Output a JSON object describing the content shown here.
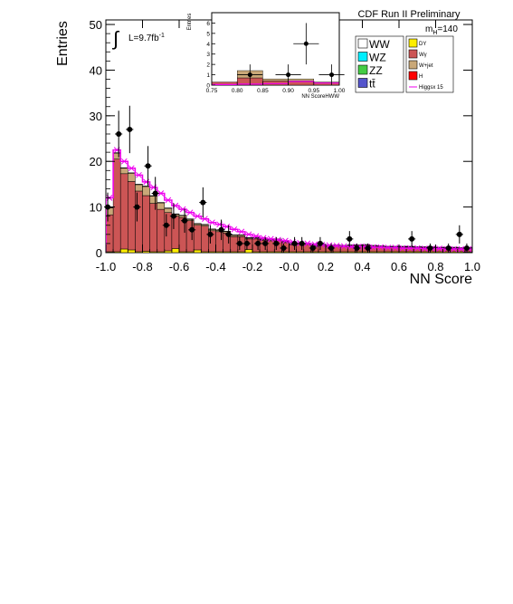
{
  "chart_data": {
    "type": "bar",
    "stacked": true,
    "xlabel": "NN Score",
    "ylabel": "Entries",
    "xlim": [
      -1.0,
      1.0
    ],
    "ylim": [
      0,
      51
    ],
    "x_ticks": [
      "-1.0",
      "-0.8",
      "-0.6",
      "-0.4",
      "-0.2",
      "-0.0",
      "0.2",
      "0.4",
      "0.6",
      "0.8",
      "1.0"
    ],
    "y_ticks": [
      "0",
      "10",
      "20",
      "30",
      "40",
      "50"
    ],
    "lumi_text": "L=9.7fb",
    "lumi_sup": "-1",
    "header_text": "CDF Run II Preliminary",
    "mass_label": "m",
    "mass_sub": "H",
    "mass_value": "=140",
    "bin_low_edges": [
      -1.0,
      -0.96,
      -0.92,
      -0.88,
      -0.84,
      -0.8,
      -0.76,
      -0.72,
      -0.68,
      -0.64,
      -0.6,
      -0.56,
      -0.52,
      -0.48,
      -0.44,
      -0.4,
      -0.36,
      -0.32,
      -0.28,
      -0.24,
      -0.2,
      -0.16,
      -0.12,
      -0.08,
      -0.04,
      0.0,
      0.04,
      0.08,
      0.12,
      0.16,
      0.2,
      0.24,
      0.28,
      0.32,
      0.36,
      0.4,
      0.44,
      0.48,
      0.52,
      0.56,
      0.6,
      0.64,
      0.68,
      0.72,
      0.76,
      0.8,
      0.84,
      0.88,
      0.92,
      0.96
    ],
    "bin_width": 0.04,
    "series": [
      {
        "name": "DY",
        "color": "#ffee00",
        "values": [
          0.2,
          0.2,
          0.8,
          0.6,
          0.2,
          0.3,
          0.2,
          0.2,
          0.4,
          0.9,
          0.2,
          0.2,
          0.6,
          0.2,
          0.2,
          0.2,
          0.2,
          0.2,
          0.2,
          0.7,
          0.2,
          0.2,
          0.2,
          0.2,
          0.2,
          0.2,
          0.2,
          0.2,
          0.2,
          0.2,
          0.2,
          0.2,
          0.2,
          0.2,
          0.2,
          0.2,
          0.2,
          0.2,
          0.2,
          0.2,
          0.2,
          0.2,
          0.2,
          0.2,
          0.2,
          0.2,
          0.2,
          0.2,
          0.2,
          0.2
        ]
      },
      {
        "name": "Wγ",
        "color": "#cc5555",
        "values": [
          8.1,
          20.3,
          16.5,
          15.0,
          13.3,
          12.2,
          10.6,
          9.3,
          8.4,
          7.1,
          7.5,
          6.8,
          5.4,
          5.6,
          4.6,
          4.4,
          4.1,
          3.3,
          3.3,
          2.3,
          2.8,
          2.5,
          2.4,
          2.5,
          2.0,
          1.5,
          1.6,
          1.6,
          1.1,
          1.4,
          1.2,
          1.2,
          1.1,
          1.2,
          1.2,
          1.3,
          1.1,
          1.1,
          1.0,
          1.0,
          1.0,
          1.0,
          0.9,
          0.9,
          0.9,
          0.8,
          0.8,
          0.8,
          0.7,
          0.7
        ]
      },
      {
        "name": "W+jet",
        "color": "#c9a878",
        "values": [
          1.5,
          1.3,
          1.2,
          1.8,
          1.4,
          2.0,
          1.6,
          1.4,
          0.9,
          0.4,
          0.4,
          0.3,
          0.3,
          0.3,
          0.3,
          0.3,
          0.3,
          0.3,
          0.3,
          0.2,
          0.2,
          0.2,
          0.2,
          0.2,
          0.2,
          0.2,
          0.2,
          0.2,
          0.2,
          0.2,
          0.2,
          0.2,
          0.2,
          0.2,
          0.2,
          0.2,
          0.2,
          0.1,
          0.1,
          0.1,
          0.1,
          0.1,
          0.1,
          0.1,
          0.1,
          0.1,
          0.1,
          0.1,
          0.1,
          0.1
        ]
      },
      {
        "name": "WW",
        "color": "#ffffff",
        "values": [
          0.1,
          0.1,
          0.1,
          0.1,
          0.1,
          0.1,
          0.1,
          0.1,
          0.1,
          0.1,
          0.1,
          0.1,
          0.1,
          0.1,
          0.1,
          0.1,
          0.1,
          0.1,
          0.1,
          0.1,
          0.1,
          0.1,
          0.1,
          0.1,
          0.1,
          0.1,
          0.1,
          0.1,
          0.1,
          0.1,
          0.1,
          0.1,
          0.1,
          0.1,
          0.1,
          0.1,
          0.1,
          0.1,
          0.1,
          0.1,
          0.1,
          0.1,
          0.1,
          0.1,
          0.1,
          0.1,
          0.1,
          0.1,
          0.1,
          0.1
        ]
      }
    ],
    "higgs_x15": {
      "name": "Higgsx 15",
      "color": "#ee00ee",
      "values": [
        12.0,
        22.5,
        20.0,
        18.5,
        17.0,
        15.5,
        14.3,
        13.0,
        11.5,
        10.3,
        9.5,
        8.8,
        8.0,
        7.4,
        6.6,
        6.2,
        5.7,
        5.1,
        4.6,
        4.0,
        3.6,
        3.2,
        3.0,
        2.8,
        2.6,
        2.3,
        2.1,
        2.0,
        1.8,
        1.7,
        1.6,
        1.5,
        1.4,
        1.3,
        1.3,
        1.3,
        1.2,
        1.2,
        1.1,
        1.1,
        1.0,
        1.0,
        1.0,
        0.9,
        0.9,
        0.9,
        0.8,
        0.8,
        0.8,
        0.8
      ]
    },
    "data_points": {
      "x": [
        -0.99,
        -0.93,
        -0.87,
        -0.83,
        -0.77,
        -0.73,
        -0.67,
        -0.63,
        -0.57,
        -0.53,
        -0.47,
        -0.43,
        -0.37,
        -0.33,
        -0.27,
        -0.23,
        -0.17,
        -0.13,
        -0.07,
        -0.03,
        0.03,
        0.07,
        0.13,
        0.17,
        0.23,
        0.33,
        0.37,
        0.43,
        0.67,
        0.77,
        0.87,
        0.93,
        0.97
      ],
      "y": [
        10,
        26,
        27,
        10,
        19,
        13,
        6,
        8,
        7,
        5,
        11,
        4,
        5,
        4,
        2,
        2,
        2,
        2,
        2,
        1,
        2,
        2,
        1,
        2,
        1,
        3,
        1,
        1,
        3,
        1,
        1,
        4,
        1
      ]
    },
    "legend": [
      "WW",
      "WZ",
      "ZZ",
      "tt̄",
      "DY",
      "Wγ",
      "W+jet",
      "H",
      "Higgsx 15"
    ],
    "legend_colors": {
      "WW": "#ffffff",
      "WZ": "#00eeff",
      "ZZ": "#44cc44",
      "tt̄": "#5555cc",
      "DY": "#ffee00",
      "Wγ": "#cc5555",
      "W+jet": "#c9a878",
      "H": "#ff0000",
      "Higgsx 15": "#ee00ee"
    },
    "inset": {
      "xlabel": "NN ScoreHWW",
      "ylabel": "Entries",
      "xlim": [
        0.75,
        1.0
      ],
      "ylim": [
        0,
        7
      ],
      "x_ticks": [
        "0.75",
        "0.80",
        "0.85",
        "0.90",
        "0.95",
        "1.00"
      ],
      "y_ticks": [
        "0",
        "1",
        "2",
        "3",
        "4",
        "5",
        "6"
      ],
      "bin_low_edges": [
        0.75,
        0.8,
        0.85,
        0.9,
        0.95
      ],
      "bin_width": 0.05,
      "wgamma": [
        0.3,
        0.7,
        0.4,
        0.4,
        0.3
      ],
      "wjet": [
        0.0,
        0.7,
        0.2,
        0.2,
        0.0
      ],
      "higgs": [
        0.05,
        0.1,
        0.15,
        0.35,
        0.2
      ],
      "data_points": {
        "x": [
          0.825,
          0.9,
          0.935,
          0.985
        ],
        "y": [
          1,
          1,
          4,
          1
        ]
      }
    }
  }
}
